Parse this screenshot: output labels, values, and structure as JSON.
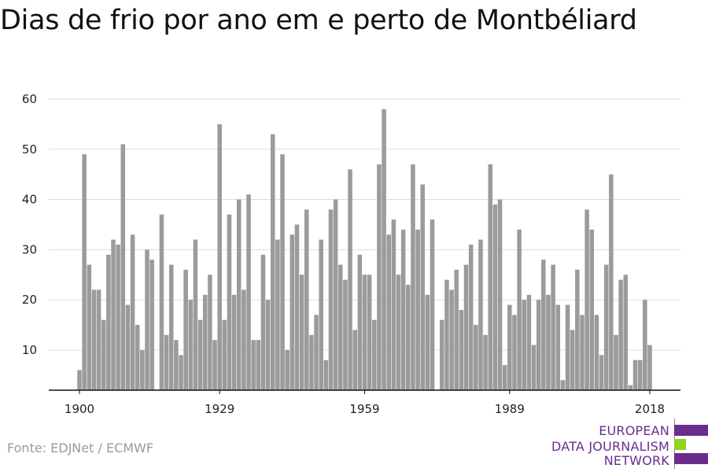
{
  "title": "Dias de frio por ano em e perto de Montbéliard",
  "source": "Fonte: EDJNet / ECMWF",
  "logo": {
    "lines": [
      "EUROPEAN",
      "DATA JOURNALISM",
      "NETWORK"
    ],
    "colors": {
      "text": "#6a2d8e",
      "purple": "#6a2d8e",
      "green": "#8fd41f"
    }
  },
  "colors": {
    "bar": "#9b9b9b",
    "grid": "#dddddd",
    "axis": "#111111",
    "text": "#222222"
  },
  "chart_data": {
    "type": "bar",
    "title": "Dias de frio por ano em e perto de Montbéliard",
    "xlabel": "",
    "ylabel": "",
    "x_start": 1900,
    "x_end": 2018,
    "xticks": [
      1900,
      1929,
      1959,
      1989,
      2018
    ],
    "yticks": [
      10,
      20,
      30,
      40,
      50,
      60
    ],
    "ylim": [
      2,
      60
    ],
    "grid": true,
    "values": [
      6,
      49,
      27,
      22,
      22,
      16,
      29,
      32,
      31,
      51,
      19,
      33,
      15,
      10,
      30,
      28,
      2,
      37,
      13,
      27,
      12,
      9,
      26,
      20,
      32,
      16,
      21,
      25,
      12,
      55,
      16,
      37,
      21,
      40,
      22,
      41,
      12,
      12,
      29,
      20,
      53,
      32,
      49,
      10,
      33,
      35,
      25,
      38,
      13,
      17,
      32,
      8,
      38,
      40,
      27,
      24,
      46,
      14,
      29,
      25,
      25,
      16,
      47,
      58,
      33,
      36,
      25,
      34,
      23,
      47,
      34,
      43,
      21,
      36,
      2,
      16,
      24,
      22,
      26,
      18,
      27,
      31,
      15,
      32,
      13,
      47,
      39,
      40,
      7,
      19,
      17,
      34,
      20,
      21,
      11,
      20,
      28,
      21,
      27,
      19,
      4,
      19,
      14,
      26,
      17,
      38,
      34,
      17,
      9,
      27,
      45,
      13,
      24,
      25,
      3,
      8,
      8,
      20,
      11
    ]
  }
}
